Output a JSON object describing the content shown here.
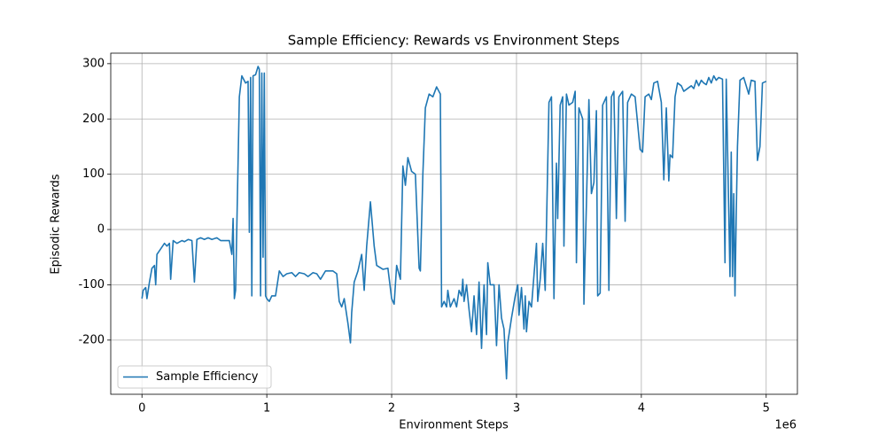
{
  "chart_data": {
    "type": "line",
    "title": "Sample Efficiency: Rewards vs Environment Steps",
    "x_label": "Environment Steps",
    "y_label": "Episodic Rewards",
    "x_offset_label": "1e6",
    "xlim": [
      -250000,
      5250000
    ],
    "ylim": [
      -298,
      319
    ],
    "xticks": [
      0,
      {
        "value": 1000000,
        "label": "1"
      },
      {
        "value": 2000000,
        "label": "2"
      },
      {
        "value": 3000000,
        "label": "3"
      },
      {
        "value": 4000000,
        "label": "4"
      },
      {
        "value": 5000000,
        "label": "5"
      }
    ],
    "yticks": [
      -200,
      -100,
      0,
      100,
      200,
      300
    ],
    "grid": true,
    "legend": "lower left",
    "x": [
      0,
      10000,
      30000,
      40000,
      60000,
      80000,
      100000,
      110000,
      120000,
      150000,
      180000,
      200000,
      220000,
      230000,
      250000,
      280000,
      320000,
      340000,
      370000,
      400000,
      420000,
      440000,
      470000,
      500000,
      530000,
      560000,
      600000,
      630000,
      700000,
      720000,
      730000,
      740000,
      750000,
      780000,
      800000,
      830000,
      850000,
      860000,
      870000,
      880000,
      890000,
      910000,
      930000,
      940000,
      950000,
      960000,
      970000,
      980000,
      990000,
      1000000,
      1020000,
      1040000,
      1070000,
      1100000,
      1130000,
      1160000,
      1200000,
      1230000,
      1260000,
      1300000,
      1330000,
      1370000,
      1400000,
      1430000,
      1470000,
      1500000,
      1530000,
      1560000,
      1580000,
      1600000,
      1620000,
      1650000,
      1670000,
      1680000,
      1700000,
      1730000,
      1760000,
      1780000,
      1800000,
      1830000,
      1860000,
      1880000,
      1930000,
      1970000,
      2000000,
      2020000,
      2040000,
      2070000,
      2090000,
      2110000,
      2130000,
      2160000,
      2190000,
      2220000,
      2230000,
      2250000,
      2270000,
      2300000,
      2330000,
      2360000,
      2390000,
      2400000,
      2420000,
      2440000,
      2450000,
      2470000,
      2500000,
      2520000,
      2540000,
      2560000,
      2570000,
      2580000,
      2600000,
      2620000,
      2640000,
      2660000,
      2680000,
      2700000,
      2720000,
      2740000,
      2760000,
      2770000,
      2790000,
      2820000,
      2840000,
      2860000,
      2880000,
      2900000,
      2920000,
      2930000,
      2960000,
      2990000,
      3010000,
      3020000,
      3040000,
      3060000,
      3070000,
      3080000,
      3100000,
      3120000,
      3160000,
      3170000,
      3190000,
      3210000,
      3230000,
      3260000,
      3280000,
      3300000,
      3320000,
      3330000,
      3350000,
      3370000,
      3380000,
      3400000,
      3420000,
      3450000,
      3470000,
      3480000,
      3500000,
      3530000,
      3540000,
      3560000,
      3580000,
      3600000,
      3620000,
      3640000,
      3650000,
      3670000,
      3690000,
      3720000,
      3740000,
      3760000,
      3780000,
      3800000,
      3820000,
      3850000,
      3870000,
      3890000,
      3920000,
      3950000,
      3990000,
      4010000,
      4030000,
      4060000,
      4080000,
      4100000,
      4130000,
      4160000,
      4180000,
      4200000,
      4220000,
      4230000,
      4250000,
      4270000,
      4290000,
      4320000,
      4340000,
      4370000,
      4400000,
      4420000,
      4440000,
      4460000,
      4480000,
      4500000,
      4520000,
      4540000,
      4560000,
      4580000,
      4600000,
      4620000,
      4650000,
      4670000,
      4680000,
      4710000,
      4720000,
      4730000,
      4740000,
      4750000,
      4760000,
      4770000,
      4790000,
      4820000,
      4860000,
      4880000,
      4910000,
      4930000,
      4950000,
      4970000,
      5000000
    ],
    "series": [
      {
        "name": "Sample Efficiency",
        "color": "#1f77b4",
        "values": [
          -125,
          -110,
          -105,
          -125,
          -95,
          -70,
          -65,
          -100,
          -45,
          -35,
          -25,
          -30,
          -25,
          -90,
          -20,
          -25,
          -20,
          -22,
          -18,
          -20,
          -95,
          -18,
          -15,
          -18,
          -15,
          -18,
          -15,
          -20,
          -20,
          -45,
          20,
          -125,
          -110,
          240,
          278,
          265,
          268,
          -5,
          275,
          -120,
          278,
          280,
          295,
          290,
          -120,
          283,
          -50,
          283,
          -120,
          -125,
          -130,
          -120,
          -120,
          -75,
          -85,
          -80,
          -78,
          -85,
          -78,
          -80,
          -85,
          -78,
          -80,
          -90,
          -75,
          -75,
          -75,
          -80,
          -130,
          -140,
          -125,
          -170,
          -205,
          -150,
          -95,
          -75,
          -45,
          -110,
          -30,
          50,
          -30,
          -65,
          -72,
          -70,
          -125,
          -135,
          -65,
          -90,
          115,
          80,
          130,
          105,
          100,
          -70,
          -75,
          100,
          220,
          245,
          240,
          258,
          245,
          -140,
          -130,
          -140,
          -110,
          -140,
          -125,
          -140,
          -110,
          -120,
          -90,
          -130,
          -100,
          -145,
          -185,
          -120,
          -190,
          -95,
          -215,
          -100,
          -190,
          -60,
          -100,
          -100,
          -210,
          -100,
          -160,
          -180,
          -270,
          -205,
          -160,
          -120,
          -100,
          -155,
          -105,
          -180,
          -120,
          -185,
          -130,
          -140,
          -25,
          -130,
          -90,
          -25,
          -110,
          230,
          240,
          -125,
          120,
          20,
          225,
          240,
          -30,
          245,
          225,
          230,
          250,
          -60,
          220,
          200,
          -135,
          45,
          235,
          65,
          85,
          215,
          -120,
          -115,
          225,
          240,
          -110,
          240,
          250,
          20,
          240,
          250,
          15,
          230,
          245,
          240,
          145,
          140,
          240,
          245,
          235,
          265,
          268,
          230,
          90,
          220,
          88,
          135,
          130,
          240,
          265,
          260,
          250,
          255,
          260,
          255,
          270,
          260,
          270,
          265,
          262,
          275,
          265,
          278,
          270,
          275,
          272,
          -60,
          272,
          -85,
          140,
          -85,
          65,
          -120,
          25,
          150,
          270,
          275,
          245,
          270,
          268,
          125,
          150,
          265,
          268
        ]
      }
    ]
  }
}
